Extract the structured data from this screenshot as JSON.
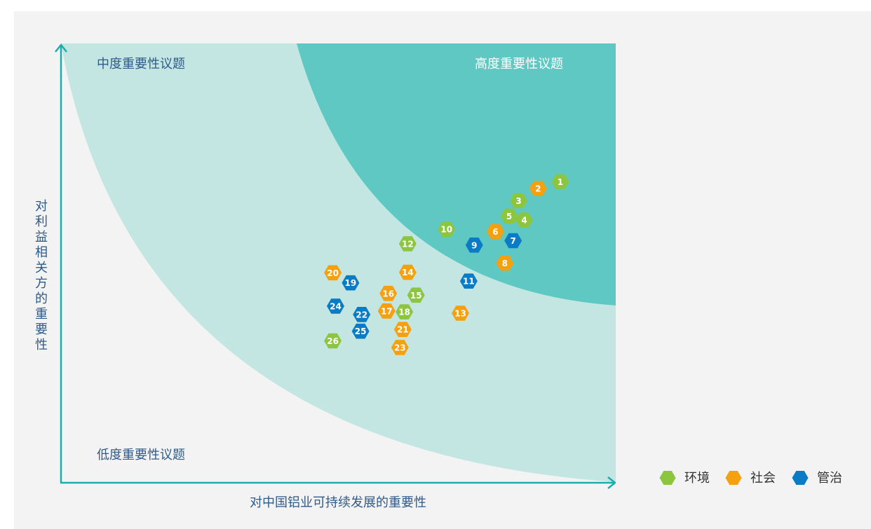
{
  "chart_data": {
    "type": "scatter",
    "title": "",
    "xlabel": "对中国铝业可持续发展的重要性",
    "ylabel": "对利益相关方的重要性",
    "zones": {
      "high": "高度重要性议题",
      "medium": "中度重要性议题",
      "low": "低度重要性议题"
    },
    "legend": [
      {
        "name": "环境",
        "color": "#8cc63f"
      },
      {
        "name": "社会",
        "color": "#f5a00f"
      },
      {
        "name": "管治",
        "color": "#0a7cc6"
      }
    ],
    "legend_position": "bottom-right",
    "grid": false,
    "points": [
      {
        "label": "1",
        "category": "环境",
        "x": 90.0,
        "y": 68.5
      },
      {
        "label": "2",
        "category": "社会",
        "x": 86.0,
        "y": 67.0
      },
      {
        "label": "3",
        "category": "环境",
        "x": 82.5,
        "y": 64.2
      },
      {
        "label": "4",
        "category": "环境",
        "x": 83.5,
        "y": 59.8
      },
      {
        "label": "5",
        "category": "环境",
        "x": 80.8,
        "y": 60.7
      },
      {
        "label": "6",
        "category": "社会",
        "x": 78.3,
        "y": 57.2
      },
      {
        "label": "7",
        "category": "管治",
        "x": 81.5,
        "y": 55.1
      },
      {
        "label": "8",
        "category": "社会",
        "x": 80.0,
        "y": 50.0
      },
      {
        "label": "9",
        "category": "管治",
        "x": 74.5,
        "y": 54.1
      },
      {
        "label": "10",
        "category": "环境",
        "x": 69.5,
        "y": 57.7
      },
      {
        "label": "11",
        "category": "管治",
        "x": 73.5,
        "y": 45.9
      },
      {
        "label": "12",
        "category": "环境",
        "x": 62.5,
        "y": 54.4
      },
      {
        "label": "13",
        "category": "社会",
        "x": 72.0,
        "y": 38.6
      },
      {
        "label": "14",
        "category": "社会",
        "x": 62.5,
        "y": 47.9
      },
      {
        "label": "15",
        "category": "环境",
        "x": 64.0,
        "y": 42.7
      },
      {
        "label": "16",
        "category": "社会",
        "x": 59.0,
        "y": 43.1
      },
      {
        "label": "17",
        "category": "社会",
        "x": 58.7,
        "y": 39.1
      },
      {
        "label": "18",
        "category": "环境",
        "x": 61.9,
        "y": 38.9
      },
      {
        "label": "19",
        "category": "管治",
        "x": 52.2,
        "y": 45.5
      },
      {
        "label": "20",
        "category": "社会",
        "x": 49.0,
        "y": 47.8
      },
      {
        "label": "21",
        "category": "社会",
        "x": 61.6,
        "y": 34.9
      },
      {
        "label": "22",
        "category": "管治",
        "x": 54.2,
        "y": 38.3
      },
      {
        "label": "23",
        "category": "社会",
        "x": 61.1,
        "y": 30.8
      },
      {
        "label": "24",
        "category": "管治",
        "x": 49.5,
        "y": 40.2
      },
      {
        "label": "25",
        "category": "管治",
        "x": 54.0,
        "y": 34.5
      },
      {
        "label": "26",
        "category": "环境",
        "x": 49.0,
        "y": 32.3
      }
    ]
  }
}
